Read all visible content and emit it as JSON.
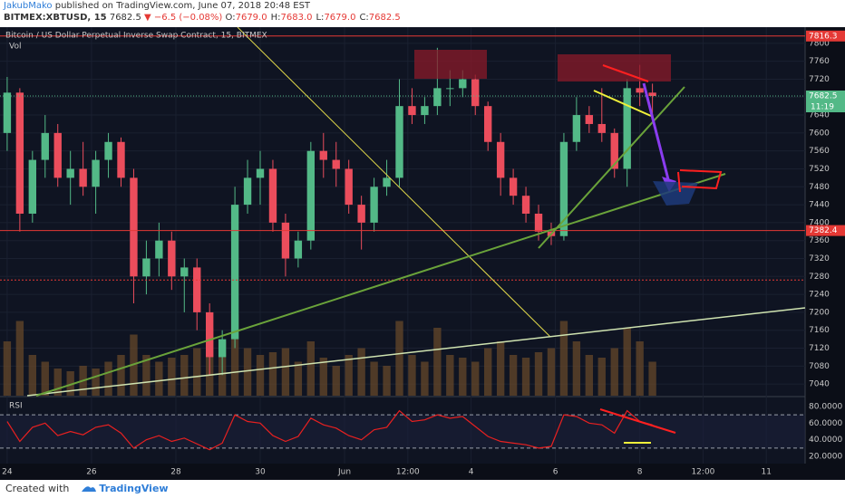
{
  "header": {
    "author": "JakubMako",
    "published": "published on TradingView.com, June 07, 2018 20:48 EST",
    "symbol": "BITMEX:XBTUSD, 15",
    "last": "7682.5",
    "change": "−6.5 (−0.08%)",
    "ohlc": [
      [
        "O:",
        "7679.0"
      ],
      [
        "H:",
        "7683.0"
      ],
      [
        "L:",
        "7679.0"
      ],
      [
        "C:",
        "7682.5"
      ]
    ]
  },
  "footer": {
    "created": "Created with",
    "brand": "TradingView"
  },
  "chart_data": [
    {
      "type": "candlestick",
      "title": "Bitcoin / US Dollar Perpetual Inverse Swap Contract, 15, BITMEX",
      "volume_label": "Vol",
      "x": [
        0,
        0.3,
        0.6,
        0.9,
        1.2,
        1.5,
        1.8,
        2.1,
        2.4,
        2.7,
        3.0,
        3.3,
        3.6,
        3.9,
        4.2,
        4.5,
        4.8,
        5.1,
        5.4,
        5.7,
        6.0,
        6.3,
        6.6,
        6.9,
        7.2,
        7.5,
        7.8,
        8.1,
        8.4,
        8.7,
        9.0,
        9.3,
        9.6,
        9.9,
        10.2,
        10.5,
        10.8,
        11.1,
        11.4,
        11.7,
        12.0,
        12.3,
        12.6,
        12.9,
        13.2,
        13.5,
        13.8,
        14.1,
        14.4,
        14.7,
        15.0,
        15.3
      ],
      "open": [
        7600,
        7690,
        7420,
        7540,
        7600,
        7500,
        7520,
        7480,
        7540,
        7580,
        7500,
        7280,
        7320,
        7360,
        7280,
        7300,
        7200,
        7100,
        7140,
        7440,
        7500,
        7520,
        7400,
        7320,
        7360,
        7560,
        7540,
        7520,
        7440,
        7400,
        7480,
        7500,
        7660,
        7640,
        7660,
        7700,
        7700,
        7720,
        7660,
        7580,
        7500,
        7460,
        7420,
        7380,
        7370,
        7580,
        7640,
        7620,
        7600,
        7520,
        7700,
        7690
      ],
      "high": [
        7725,
        7700,
        7560,
        7640,
        7620,
        7560,
        7580,
        7560,
        7600,
        7590,
        7520,
        7360,
        7400,
        7380,
        7320,
        7320,
        7220,
        7160,
        7480,
        7540,
        7560,
        7540,
        7420,
        7380,
        7580,
        7600,
        7580,
        7540,
        7460,
        7500,
        7540,
        7720,
        7700,
        7680,
        7790,
        7740,
        7740,
        7730,
        7670,
        7600,
        7520,
        7480,
        7440,
        7400,
        7600,
        7680,
        7660,
        7700,
        7610,
        7720,
        7752,
        7710
      ],
      "low": [
        7560,
        7380,
        7400,
        7500,
        7480,
        7440,
        7460,
        7420,
        7500,
        7480,
        7220,
        7240,
        7280,
        7250,
        7200,
        7160,
        7060,
        7060,
        7120,
        7420,
        7440,
        7380,
        7280,
        7300,
        7340,
        7500,
        7480,
        7420,
        7340,
        7380,
        7460,
        7480,
        7620,
        7620,
        7640,
        7660,
        7680,
        7640,
        7560,
        7460,
        7440,
        7400,
        7360,
        7350,
        7360,
        7560,
        7600,
        7580,
        7500,
        7480,
        7660,
        7640
      ],
      "close": [
        7690,
        7420,
        7540,
        7600,
        7500,
        7520,
        7480,
        7540,
        7580,
        7500,
        7280,
        7320,
        7360,
        7280,
        7300,
        7200,
        7100,
        7140,
        7440,
        7500,
        7520,
        7400,
        7320,
        7360,
        7560,
        7540,
        7520,
        7440,
        7400,
        7480,
        7500,
        7660,
        7640,
        7660,
        7700,
        7700,
        7720,
        7660,
        7580,
        7500,
        7460,
        7420,
        7380,
        7370,
        7580,
        7640,
        7620,
        7600,
        7520,
        7700,
        7690,
        7682.5
      ],
      "volume": [
        40,
        55,
        30,
        25,
        20,
        18,
        22,
        20,
        25,
        30,
        45,
        30,
        25,
        28,
        30,
        35,
        50,
        40,
        60,
        35,
        30,
        32,
        35,
        25,
        40,
        28,
        22,
        30,
        35,
        25,
        22,
        55,
        30,
        25,
        50,
        30,
        28,
        25,
        35,
        40,
        30,
        28,
        32,
        35,
        55,
        40,
        30,
        28,
        35,
        50,
        40,
        25
      ],
      "volume_lim": [
        0,
        100
      ],
      "volume_color": "#6b4a2a",
      "up_color": "#53b987",
      "down_color": "#eb4d5c",
      "xlim": [
        -0.17,
        18.92
      ],
      "xticks": [
        {
          "value": 0,
          "label": "24"
        },
        {
          "value": 2,
          "label": "26"
        },
        {
          "value": 4,
          "label": "28"
        },
        {
          "value": 6,
          "label": "30"
        },
        {
          "value": 8,
          "label": "Jun"
        },
        {
          "value": 9.5,
          "label": "12:00"
        },
        {
          "value": 11,
          "label": "4"
        },
        {
          "value": 13,
          "label": "6"
        },
        {
          "value": 15,
          "label": "8"
        },
        {
          "value": 16.5,
          "label": "12:00"
        },
        {
          "value": 18,
          "label": "11"
        }
      ],
      "ylim": [
        7014,
        7832
      ],
      "yticks": [
        7040,
        7080,
        7120,
        7160,
        7200,
        7240,
        7280,
        7320,
        7360,
        7400,
        7440,
        7480,
        7520,
        7560,
        7600,
        7640,
        7680,
        7720,
        7760,
        7800
      ],
      "grid": true,
      "levels": [
        {
          "value": 7816.3,
          "color": "#e53935",
          "labelled": true
        },
        {
          "value": 7382.4,
          "color": "#e53935",
          "labelled": true
        },
        {
          "value": 7272,
          "color": "#e53935",
          "labelled": false
        }
      ],
      "last_price": {
        "value": 7682.5,
        "color": "#53b987",
        "countdown": "11:19"
      }
    },
    {
      "type": "line",
      "title": "RSI",
      "color": "#e82020",
      "values": [
        62,
        38,
        55,
        60,
        45,
        50,
        46,
        55,
        58,
        48,
        30,
        40,
        45,
        38,
        42,
        35,
        28,
        36,
        70,
        62,
        60,
        45,
        38,
        44,
        66,
        58,
        54,
        45,
        40,
        52,
        55,
        75,
        62,
        64,
        70,
        66,
        68,
        56,
        44,
        38,
        36,
        34,
        30,
        32,
        70,
        68,
        60,
        58,
        48,
        75,
        62,
        58
      ],
      "ylim": [
        11.3,
        89.8
      ],
      "yticks": [
        {
          "value": 20,
          "label": "20.0000"
        },
        {
          "value": 40,
          "label": "40.0000"
        },
        {
          "value": 60,
          "label": "60.0000"
        },
        {
          "value": 80,
          "label": "80.0000"
        }
      ],
      "bands": [
        70,
        30
      ]
    }
  ]
}
